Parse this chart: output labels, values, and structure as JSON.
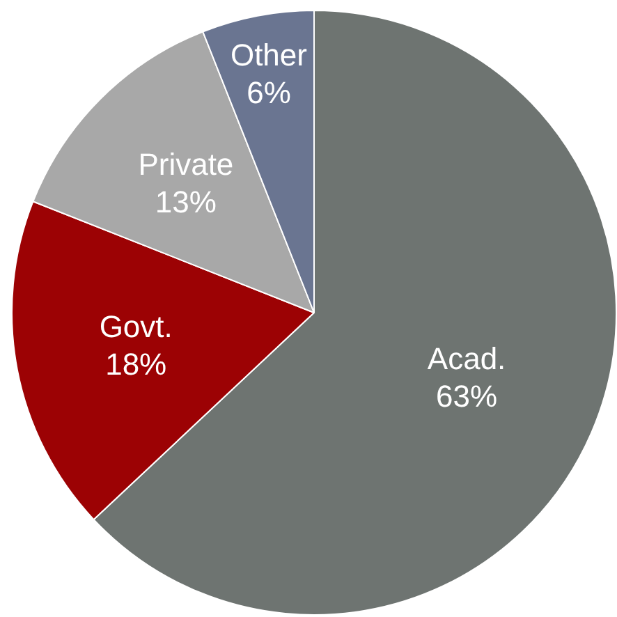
{
  "chart_data": {
    "type": "pie",
    "categories": [
      "Acad.",
      "Govt.",
      "Private",
      "Other"
    ],
    "values": [
      63,
      18,
      13,
      6
    ],
    "colors": [
      "#6e7471",
      "#9c0204",
      "#a8a8a8",
      "#6a7591"
    ],
    "value_labels": [
      "63%",
      "18%",
      "13%",
      "6%"
    ],
    "legend": false
  }
}
